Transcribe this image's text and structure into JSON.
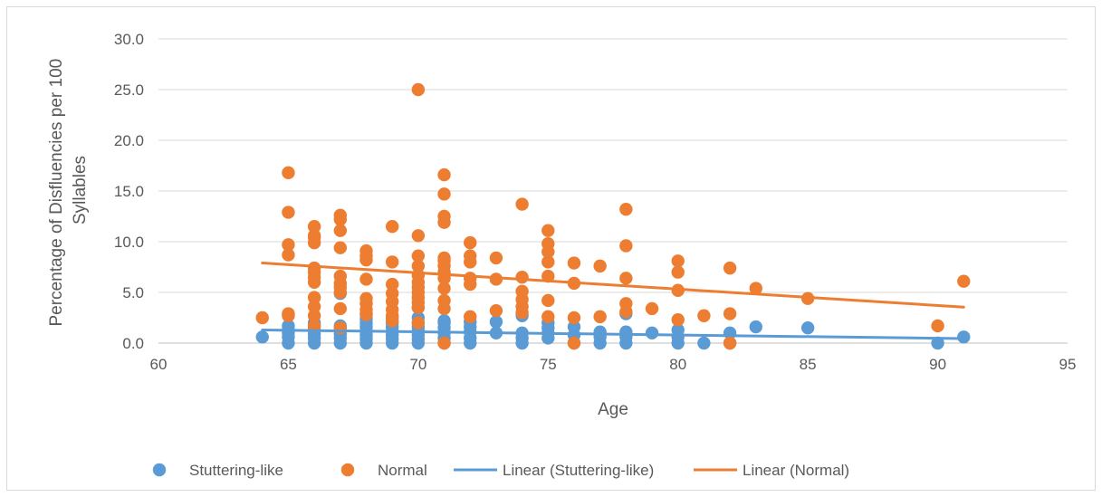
{
  "chart_data": {
    "type": "scatter",
    "title": "",
    "xlabel": "Age",
    "ylabel_lines": [
      "Percentage of Disfluencies per 100",
      "Syllables"
    ],
    "xlim": [
      60,
      95
    ],
    "ylim": [
      0,
      30
    ],
    "x_ticks": [
      60,
      65,
      70,
      75,
      80,
      85,
      90,
      95
    ],
    "y_ticks": [
      "0.0",
      "5.0",
      "10.0",
      "15.0",
      "20.0",
      "25.0",
      "30.0"
    ],
    "grid": "horizontal",
    "legend_position": "bottom",
    "series": [
      {
        "name": "Stuttering-like",
        "color": "#5b9bd5",
        "points": [
          [
            64,
            0.6
          ],
          [
            65,
            0.0
          ],
          [
            65,
            0.6
          ],
          [
            65,
            1.0
          ],
          [
            65,
            1.3
          ],
          [
            65,
            1.7
          ],
          [
            66,
            0.0
          ],
          [
            66,
            0.5
          ],
          [
            66,
            0.9
          ],
          [
            66,
            1.3
          ],
          [
            66,
            1.7
          ],
          [
            66,
            2.0
          ],
          [
            67,
            0.0
          ],
          [
            67,
            0.5
          ],
          [
            67,
            0.9
          ],
          [
            67,
            1.3
          ],
          [
            67,
            1.7
          ],
          [
            67,
            4.9
          ],
          [
            68,
            0.0
          ],
          [
            68,
            0.4
          ],
          [
            68,
            0.8
          ],
          [
            68,
            1.2
          ],
          [
            68,
            1.6
          ],
          [
            68,
            2.0
          ],
          [
            68,
            2.4
          ],
          [
            68,
            2.9
          ],
          [
            69,
            0.0
          ],
          [
            69,
            0.4
          ],
          [
            69,
            0.8
          ],
          [
            69,
            1.2
          ],
          [
            69,
            1.6
          ],
          [
            69,
            2.0
          ],
          [
            69,
            2.5
          ],
          [
            70,
            0.0
          ],
          [
            70,
            0.4
          ],
          [
            70,
            0.8
          ],
          [
            70,
            1.2
          ],
          [
            70,
            1.6
          ],
          [
            70,
            2.0
          ],
          [
            70,
            2.5
          ],
          [
            70,
            3.5
          ],
          [
            71,
            0.0
          ],
          [
            71,
            0.5
          ],
          [
            71,
            1.0
          ],
          [
            71,
            1.5
          ],
          [
            71,
            2.0
          ],
          [
            71,
            2.2
          ],
          [
            72,
            0.0
          ],
          [
            72,
            0.5
          ],
          [
            72,
            1.1
          ],
          [
            72,
            1.6
          ],
          [
            72,
            2.1
          ],
          [
            73,
            1.0
          ],
          [
            73,
            2.1
          ],
          [
            74,
            0.0
          ],
          [
            74,
            0.5
          ],
          [
            74,
            1.0
          ],
          [
            74,
            2.7
          ],
          [
            75,
            0.5
          ],
          [
            75,
            1.0
          ],
          [
            75,
            1.5
          ],
          [
            75,
            2.0
          ],
          [
            76,
            0.0
          ],
          [
            76,
            0.8
          ],
          [
            76,
            1.6
          ],
          [
            77,
            0.0
          ],
          [
            77,
            0.6
          ],
          [
            77,
            1.1
          ],
          [
            78,
            0.0
          ],
          [
            78,
            0.6
          ],
          [
            78,
            1.1
          ],
          [
            78,
            2.9
          ],
          [
            79,
            1.0
          ],
          [
            80,
            0.0
          ],
          [
            80,
            0.6
          ],
          [
            80,
            1.3
          ],
          [
            81,
            0.0
          ],
          [
            82,
            0.0
          ],
          [
            82,
            1.0
          ],
          [
            83,
            1.6
          ],
          [
            85,
            1.5
          ],
          [
            90,
            0.0
          ],
          [
            91,
            0.6
          ]
        ]
      },
      {
        "name": "Normal",
        "color": "#ed7d31",
        "points": [
          [
            64,
            2.5
          ],
          [
            65,
            2.7
          ],
          [
            65,
            2.9
          ],
          [
            65,
            8.7
          ],
          [
            65,
            9.7
          ],
          [
            65,
            12.9
          ],
          [
            65,
            16.8
          ],
          [
            66,
            1.7
          ],
          [
            66,
            2.7
          ],
          [
            66,
            3.6
          ],
          [
            66,
            4.5
          ],
          [
            66,
            6.0
          ],
          [
            66,
            6.5
          ],
          [
            66,
            7.0
          ],
          [
            66,
            7.4
          ],
          [
            66,
            9.9
          ],
          [
            66,
            10.4
          ],
          [
            66,
            10.6
          ],
          [
            66,
            11.5
          ],
          [
            67,
            1.5
          ],
          [
            67,
            3.4
          ],
          [
            67,
            5.0
          ],
          [
            67,
            5.5
          ],
          [
            67,
            5.9
          ],
          [
            67,
            6.6
          ],
          [
            67,
            9.4
          ],
          [
            67,
            11.1
          ],
          [
            67,
            12.2
          ],
          [
            67,
            12.6
          ],
          [
            68,
            2.8
          ],
          [
            68,
            3.3
          ],
          [
            68,
            3.9
          ],
          [
            68,
            4.4
          ],
          [
            68,
            6.3
          ],
          [
            68,
            8.2
          ],
          [
            68,
            8.6
          ],
          [
            68,
            9.1
          ],
          [
            69,
            2.2
          ],
          [
            69,
            2.7
          ],
          [
            69,
            3.3
          ],
          [
            69,
            4.1
          ],
          [
            69,
            4.9
          ],
          [
            69,
            5.8
          ],
          [
            69,
            8.0
          ],
          [
            69,
            11.5
          ],
          [
            70,
            2.0
          ],
          [
            70,
            3.5
          ],
          [
            70,
            4.0
          ],
          [
            70,
            4.5
          ],
          [
            70,
            5.0
          ],
          [
            70,
            5.5
          ],
          [
            70,
            6.0
          ],
          [
            70,
            6.7
          ],
          [
            70,
            7.6
          ],
          [
            70,
            8.6
          ],
          [
            70,
            10.6
          ],
          [
            70,
            25.0
          ],
          [
            71,
            0.0
          ],
          [
            71,
            3.4
          ],
          [
            71,
            4.2
          ],
          [
            71,
            5.4
          ],
          [
            71,
            6.4
          ],
          [
            71,
            7.0
          ],
          [
            71,
            7.6
          ],
          [
            71,
            8.1
          ],
          [
            71,
            8.4
          ],
          [
            71,
            11.9
          ],
          [
            71,
            12.5
          ],
          [
            71,
            14.7
          ],
          [
            71,
            16.6
          ],
          [
            72,
            2.6
          ],
          [
            72,
            5.8
          ],
          [
            72,
            6.4
          ],
          [
            72,
            8.0
          ],
          [
            72,
            8.6
          ],
          [
            72,
            9.9
          ],
          [
            73,
            3.2
          ],
          [
            73,
            6.3
          ],
          [
            73,
            8.4
          ],
          [
            74,
            3.0
          ],
          [
            74,
            3.6
          ],
          [
            74,
            4.3
          ],
          [
            74,
            5.1
          ],
          [
            74,
            6.5
          ],
          [
            74,
            13.7
          ],
          [
            75,
            2.6
          ],
          [
            75,
            4.2
          ],
          [
            75,
            6.6
          ],
          [
            75,
            8.0
          ],
          [
            75,
            9.0
          ],
          [
            75,
            9.8
          ],
          [
            75,
            11.1
          ],
          [
            76,
            0.0
          ],
          [
            76,
            2.5
          ],
          [
            76,
            5.9
          ],
          [
            76,
            7.9
          ],
          [
            77,
            2.6
          ],
          [
            77,
            7.6
          ],
          [
            78,
            3.1
          ],
          [
            78,
            3.9
          ],
          [
            78,
            6.4
          ],
          [
            78,
            9.6
          ],
          [
            78,
            13.2
          ],
          [
            79,
            3.4
          ],
          [
            80,
            2.3
          ],
          [
            80,
            5.2
          ],
          [
            80,
            7.0
          ],
          [
            80,
            8.1
          ],
          [
            81,
            2.7
          ],
          [
            82,
            0.0
          ],
          [
            82,
            2.9
          ],
          [
            82,
            7.4
          ],
          [
            83,
            5.4
          ],
          [
            85,
            4.4
          ],
          [
            90,
            1.7
          ],
          [
            91,
            6.1
          ]
        ]
      }
    ],
    "trendlines": [
      {
        "name": "Linear (Stuttering-like)",
        "color": "#5b9bd5",
        "from": [
          64,
          1.3
        ],
        "to": [
          91,
          0.45
        ]
      },
      {
        "name": "Linear (Normal)",
        "color": "#ed7d31",
        "from": [
          64,
          7.9
        ],
        "to": [
          91,
          3.55
        ]
      }
    ],
    "legend": [
      {
        "label": "Stuttering-like",
        "kind": "marker",
        "color": "#5b9bd5"
      },
      {
        "label": "Normal",
        "kind": "marker",
        "color": "#ed7d31"
      },
      {
        "label": "Linear (Stuttering-like)",
        "kind": "line",
        "color": "#5b9bd5"
      },
      {
        "label": "Linear (Normal)",
        "kind": "line",
        "color": "#ed7d31"
      }
    ]
  }
}
